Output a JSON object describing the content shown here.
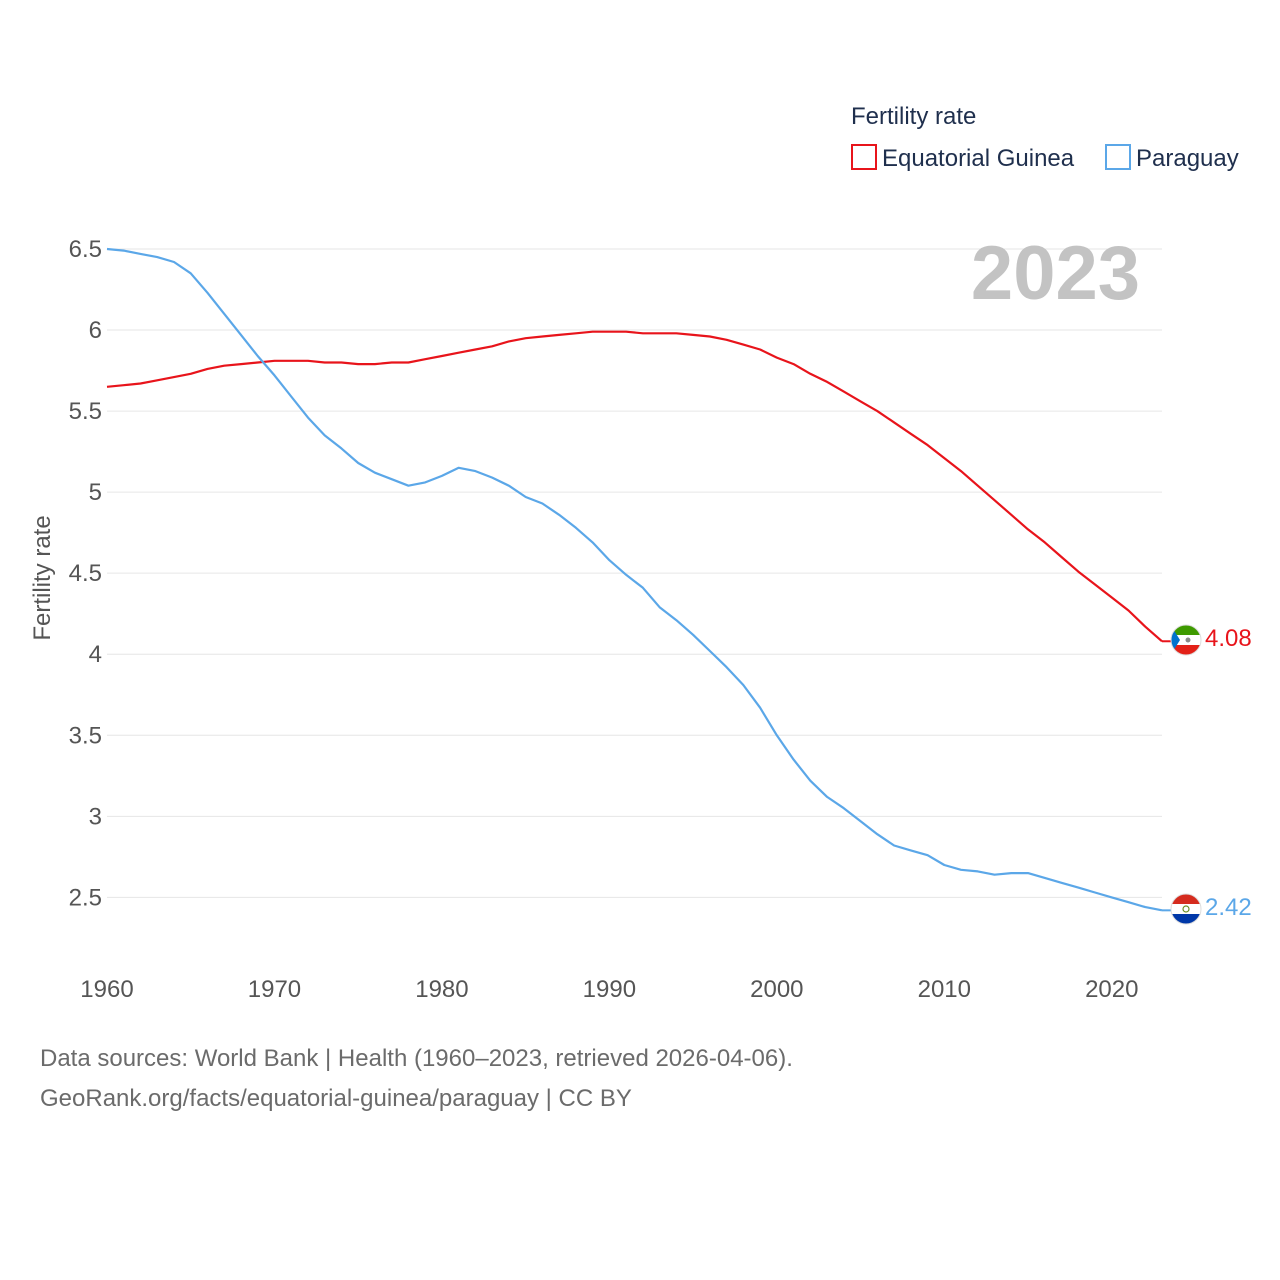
{
  "chart_data": {
    "type": "line",
    "title": "",
    "legend_title": "Fertility rate",
    "xlabel": "",
    "ylabel": "Fertility rate",
    "xlim": [
      1960,
      2023
    ],
    "ylim": [
      2.2,
      6.5
    ],
    "x_ticks": [
      1960,
      1970,
      1980,
      1990,
      2000,
      2010,
      2020
    ],
    "x_tick_labels": [
      "1960",
      "1970",
      "1980",
      "1990",
      "2000",
      "2010",
      "2020"
    ],
    "y_ticks": [
      2.5,
      3,
      3.5,
      4,
      4.5,
      5,
      5.5,
      6,
      6.5
    ],
    "y_tick_labels": [
      "2.5",
      "3",
      "3.5",
      "4",
      "4.5",
      "5",
      "5.5",
      "6",
      "6.5"
    ],
    "grid": true,
    "legend_position": "top-right",
    "year_label": "2023",
    "x": [
      1960,
      1961,
      1962,
      1963,
      1964,
      1965,
      1966,
      1967,
      1968,
      1969,
      1970,
      1971,
      1972,
      1973,
      1974,
      1975,
      1976,
      1977,
      1978,
      1979,
      1980,
      1981,
      1982,
      1983,
      1984,
      1985,
      1986,
      1987,
      1988,
      1989,
      1990,
      1991,
      1992,
      1993,
      1994,
      1995,
      1996,
      1997,
      1998,
      1999,
      2000,
      2001,
      2002,
      2003,
      2004,
      2005,
      2006,
      2007,
      2008,
      2009,
      2010,
      2011,
      2012,
      2013,
      2014,
      2015,
      2016,
      2017,
      2018,
      2019,
      2020,
      2021,
      2022,
      2023
    ],
    "series": [
      {
        "name": "Equatorial Guinea",
        "color": "#e8141b",
        "end_label": "4.08",
        "flag": "equatorial-guinea-flag",
        "values": [
          5.65,
          5.66,
          5.67,
          5.69,
          5.71,
          5.73,
          5.76,
          5.78,
          5.79,
          5.8,
          5.81,
          5.81,
          5.81,
          5.8,
          5.8,
          5.79,
          5.79,
          5.8,
          5.8,
          5.82,
          5.84,
          5.86,
          5.88,
          5.9,
          5.93,
          5.95,
          5.96,
          5.97,
          5.98,
          5.99,
          5.99,
          5.99,
          5.98,
          5.98,
          5.98,
          5.97,
          5.96,
          5.94,
          5.91,
          5.88,
          5.83,
          5.79,
          5.73,
          5.68,
          5.62,
          5.56,
          5.5,
          5.43,
          5.36,
          5.29,
          5.21,
          5.13,
          5.04,
          4.95,
          4.86,
          4.77,
          4.69,
          4.6,
          4.51,
          4.43,
          4.35,
          4.27,
          4.17,
          4.08
        ]
      },
      {
        "name": "Paraguay",
        "color": "#5ba7e8",
        "end_label": "2.42",
        "flag": "paraguay-flag",
        "values": [
          6.5,
          6.49,
          6.47,
          6.45,
          6.42,
          6.35,
          6.23,
          6.1,
          5.97,
          5.84,
          5.72,
          5.59,
          5.46,
          5.35,
          5.27,
          5.18,
          5.12,
          5.08,
          5.04,
          5.06,
          5.1,
          5.15,
          5.13,
          5.09,
          5.04,
          4.97,
          4.93,
          4.86,
          4.78,
          4.69,
          4.58,
          4.49,
          4.41,
          4.29,
          4.21,
          4.12,
          4.02,
          3.92,
          3.81,
          3.67,
          3.5,
          3.35,
          3.22,
          3.12,
          3.05,
          2.97,
          2.89,
          2.82,
          2.79,
          2.76,
          2.7,
          2.67,
          2.66,
          2.64,
          2.65,
          2.65,
          2.62,
          2.59,
          2.56,
          2.53,
          2.5,
          2.47,
          2.44,
          2.42
        ]
      }
    ]
  },
  "source": {
    "line1": "Data sources: World Bank | Health (1960–2023, retrieved 2026-04-06).",
    "line2": "GeoRank.org/facts/equatorial-guinea/paraguay | CC BY"
  }
}
